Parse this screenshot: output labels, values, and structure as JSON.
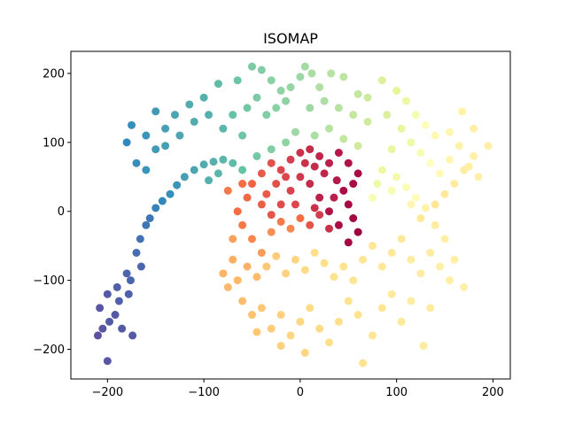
{
  "chart_data": {
    "type": "scatter",
    "title": "ISOMAP",
    "xlabel": "",
    "ylabel": "",
    "xlim": [
      -238,
      218
    ],
    "ylim": [
      -243,
      232
    ],
    "xticks": [
      -200,
      -100,
      0,
      100,
      200
    ],
    "xtick_labels": [
      "−200",
      "−100",
      "0",
      "100",
      "200"
    ],
    "yticks": [
      -200,
      -100,
      0,
      100,
      200
    ],
    "ytick_labels": [
      "−200",
      "−100",
      "0",
      "100",
      "200"
    ],
    "grid": false,
    "legend": "none",
    "colormap": "Spectral",
    "colormap_stops": [
      "#9e0142",
      "#d53e4f",
      "#f46d43",
      "#fdae61",
      "#fee08b",
      "#ffffbf",
      "#e6f598",
      "#abdda4",
      "#66c2a5",
      "#3288bd",
      "#5e4fa2"
    ],
    "points": [
      {
        "x": -210,
        "y": -180,
        "c": 1.0
      },
      {
        "x": -205,
        "y": -170,
        "c": 0.99
      },
      {
        "x": -200,
        "y": -217,
        "c": 0.99
      },
      {
        "x": -198,
        "y": -160,
        "c": 0.98
      },
      {
        "x": -192,
        "y": -150,
        "c": 0.98
      },
      {
        "x": -188,
        "y": -130,
        "c": 0.97
      },
      {
        "x": -190,
        "y": -110,
        "c": 0.97
      },
      {
        "x": -180,
        "y": -90,
        "c": 0.96
      },
      {
        "x": -176,
        "y": -100,
        "c": 0.96
      },
      {
        "x": -170,
        "y": -60,
        "c": 0.95
      },
      {
        "x": -166,
        "y": -40,
        "c": 0.94
      },
      {
        "x": -160,
        "y": -20,
        "c": 0.93
      },
      {
        "x": -174,
        "y": -180,
        "c": 0.98
      },
      {
        "x": -185,
        "y": -170,
        "c": 0.98
      },
      {
        "x": -200,
        "y": -120,
        "c": 0.98
      },
      {
        "x": -208,
        "y": -140,
        "c": 0.99
      },
      {
        "x": -178,
        "y": -120,
        "c": 0.97
      },
      {
        "x": -165,
        "y": -80,
        "c": 0.96
      },
      {
        "x": -156,
        "y": -10,
        "c": 0.93
      },
      {
        "x": -150,
        "y": 5,
        "c": 0.91
      },
      {
        "x": -143,
        "y": 15,
        "c": 0.9
      },
      {
        "x": -135,
        "y": 25,
        "c": 0.89
      },
      {
        "x": -128,
        "y": 38,
        "c": 0.88
      },
      {
        "x": -120,
        "y": 50,
        "c": 0.86
      },
      {
        "x": -110,
        "y": 60,
        "c": 0.85
      },
      {
        "x": -100,
        "y": 68,
        "c": 0.84
      },
      {
        "x": -90,
        "y": 72,
        "c": 0.83
      },
      {
        "x": -80,
        "y": 75,
        "c": 0.82
      },
      {
        "x": -70,
        "y": 70,
        "c": 0.81
      },
      {
        "x": -160,
        "y": 60,
        "c": 0.88
      },
      {
        "x": -170,
        "y": 70,
        "c": 0.89
      },
      {
        "x": -180,
        "y": 100,
        "c": 0.9
      },
      {
        "x": -175,
        "y": 125,
        "c": 0.89
      },
      {
        "x": -160,
        "y": 110,
        "c": 0.88
      },
      {
        "x": -150,
        "y": 90,
        "c": 0.87
      },
      {
        "x": -140,
        "y": 120,
        "c": 0.86
      },
      {
        "x": -130,
        "y": 140,
        "c": 0.85
      },
      {
        "x": -115,
        "y": 155,
        "c": 0.84
      },
      {
        "x": -100,
        "y": 165,
        "c": 0.83
      },
      {
        "x": -85,
        "y": 185,
        "c": 0.81
      },
      {
        "x": -65,
        "y": 190,
        "c": 0.79
      },
      {
        "x": -50,
        "y": 210,
        "c": 0.77
      },
      {
        "x": -40,
        "y": 205,
        "c": 0.76
      },
      {
        "x": -30,
        "y": 190,
        "c": 0.75
      },
      {
        "x": -20,
        "y": 175,
        "c": 0.74
      },
      {
        "x": -10,
        "y": 180,
        "c": 0.73
      },
      {
        "x": 0,
        "y": 195,
        "c": 0.72
      },
      {
        "x": 5,
        "y": 210,
        "c": 0.71
      },
      {
        "x": 12,
        "y": 200,
        "c": 0.7
      },
      {
        "x": 20,
        "y": 180,
        "c": 0.69
      },
      {
        "x": 32,
        "y": 200,
        "c": 0.68
      },
      {
        "x": 45,
        "y": 195,
        "c": 0.67
      },
      {
        "x": 60,
        "y": 170,
        "c": 0.66
      },
      {
        "x": 70,
        "y": 165,
        "c": 0.64
      },
      {
        "x": 85,
        "y": 190,
        "c": 0.62
      },
      {
        "x": 100,
        "y": 175,
        "c": 0.6
      },
      {
        "x": 110,
        "y": 160,
        "c": 0.57
      },
      {
        "x": 120,
        "y": 140,
        "c": 0.54
      },
      {
        "x": 130,
        "y": 125,
        "c": 0.51
      },
      {
        "x": 140,
        "y": 110,
        "c": 0.48
      },
      {
        "x": 155,
        "y": 115,
        "c": 0.47
      },
      {
        "x": 168,
        "y": 145,
        "c": 0.46
      },
      {
        "x": 180,
        "y": 120,
        "c": 0.45
      },
      {
        "x": 195,
        "y": 95,
        "c": 0.45
      },
      {
        "x": 180,
        "y": 80,
        "c": 0.45
      },
      {
        "x": 170,
        "y": 60,
        "c": 0.44
      },
      {
        "x": 160,
        "y": 40,
        "c": 0.44
      },
      {
        "x": 150,
        "y": 25,
        "c": 0.43
      },
      {
        "x": 140,
        "y": 10,
        "c": 0.42
      },
      {
        "x": -150,
        "y": 145,
        "c": 0.87
      },
      {
        "x": -140,
        "y": 95,
        "c": 0.86
      },
      {
        "x": -125,
        "y": 110,
        "c": 0.85
      },
      {
        "x": -110,
        "y": 130,
        "c": 0.84
      },
      {
        "x": -95,
        "y": 140,
        "c": 0.83
      },
      {
        "x": -80,
        "y": 120,
        "c": 0.82
      },
      {
        "x": -70,
        "y": 140,
        "c": 0.8
      },
      {
        "x": -60,
        "y": 110,
        "c": 0.79
      },
      {
        "x": -55,
        "y": 150,
        "c": 0.78
      },
      {
        "x": -45,
        "y": 165,
        "c": 0.77
      },
      {
        "x": -35,
        "y": 140,
        "c": 0.76
      },
      {
        "x": -25,
        "y": 150,
        "c": 0.75
      },
      {
        "x": -15,
        "y": 160,
        "c": 0.74
      },
      {
        "x": 10,
        "y": 150,
        "c": 0.72
      },
      {
        "x": 25,
        "y": 160,
        "c": 0.7
      },
      {
        "x": 40,
        "y": 150,
        "c": 0.68
      },
      {
        "x": 55,
        "y": 140,
        "c": 0.66
      },
      {
        "x": 70,
        "y": 130,
        "c": 0.64
      },
      {
        "x": 90,
        "y": 140,
        "c": 0.62
      },
      {
        "x": 105,
        "y": 120,
        "c": 0.59
      },
      {
        "x": 115,
        "y": 100,
        "c": 0.56
      },
      {
        "x": 125,
        "y": 85,
        "c": 0.53
      },
      {
        "x": 135,
        "y": 70,
        "c": 0.5
      },
      {
        "x": 145,
        "y": 55,
        "c": 0.48
      },
      {
        "x": 155,
        "y": 75,
        "c": 0.47
      },
      {
        "x": 165,
        "y": 95,
        "c": 0.46
      },
      {
        "x": 175,
        "y": 65,
        "c": 0.45
      },
      {
        "x": 185,
        "y": 50,
        "c": 0.45
      },
      {
        "x": 95,
        "y": 90,
        "c": 0.58
      },
      {
        "x": 85,
        "y": 60,
        "c": 0.57
      },
      {
        "x": 100,
        "y": 50,
        "c": 0.55
      },
      {
        "x": 110,
        "y": 35,
        "c": 0.52
      },
      {
        "x": 120,
        "y": 20,
        "c": 0.49
      },
      {
        "x": 130,
        "y": 5,
        "c": 0.46
      },
      {
        "x": 125,
        "y": -10,
        "c": 0.43
      },
      {
        "x": 115,
        "y": 10,
        "c": 0.47
      },
      {
        "x": 95,
        "y": 30,
        "c": 0.53
      },
      {
        "x": 80,
        "y": 40,
        "c": 0.56
      },
      {
        "x": 75,
        "y": 20,
        "c": 0.53
      },
      {
        "x": -60,
        "y": 60,
        "c": 0.8
      },
      {
        "x": -45,
        "y": 80,
        "c": 0.78
      },
      {
        "x": -30,
        "y": 90,
        "c": 0.76
      },
      {
        "x": -15,
        "y": 100,
        "c": 0.74
      },
      {
        "x": -5,
        "y": 115,
        "c": 0.72
      },
      {
        "x": 15,
        "y": 110,
        "c": 0.7
      },
      {
        "x": 30,
        "y": 120,
        "c": 0.68
      },
      {
        "x": 45,
        "y": 105,
        "c": 0.66
      },
      {
        "x": 60,
        "y": 95,
        "c": 0.64
      },
      {
        "x": -50,
        "y": 40,
        "c": 0.18
      },
      {
        "x": -40,
        "y": 55,
        "c": 0.16
      },
      {
        "x": -30,
        "y": 70,
        "c": 0.14
      },
      {
        "x": -20,
        "y": 60,
        "c": 0.12
      },
      {
        "x": -10,
        "y": 75,
        "c": 0.1
      },
      {
        "x": 0,
        "y": 85,
        "c": 0.08
      },
      {
        "x": 10,
        "y": 90,
        "c": 0.07
      },
      {
        "x": 20,
        "y": 80,
        "c": 0.06
      },
      {
        "x": 30,
        "y": 70,
        "c": 0.05
      },
      {
        "x": 40,
        "y": 85,
        "c": 0.04
      },
      {
        "x": 50,
        "y": 70,
        "c": 0.03
      },
      {
        "x": 60,
        "y": 55,
        "c": 0.02
      },
      {
        "x": 55,
        "y": 40,
        "c": 0.02
      },
      {
        "x": 45,
        "y": 30,
        "c": 0.02
      },
      {
        "x": 50,
        "y": 10,
        "c": 0.01
      },
      {
        "x": 55,
        "y": -10,
        "c": 0.01
      },
      {
        "x": 60,
        "y": -30,
        "c": 0.0
      },
      {
        "x": 50,
        "y": -45,
        "c": 0.01
      },
      {
        "x": 40,
        "y": -20,
        "c": 0.02
      },
      {
        "x": 30,
        "y": 0,
        "c": 0.03
      },
      {
        "x": 20,
        "y": 20,
        "c": 0.05
      },
      {
        "x": 10,
        "y": 40,
        "c": 0.07
      },
      {
        "x": 0,
        "y": 50,
        "c": 0.09
      },
      {
        "x": -10,
        "y": 30,
        "c": 0.11
      },
      {
        "x": -20,
        "y": 10,
        "c": 0.13
      },
      {
        "x": -30,
        "y": -5,
        "c": 0.15
      },
      {
        "x": -40,
        "y": 10,
        "c": 0.17
      },
      {
        "x": -55,
        "y": 20,
        "c": 0.19
      },
      {
        "x": -65,
        "y": 0,
        "c": 0.2
      },
      {
        "x": -60,
        "y": -20,
        "c": 0.22
      },
      {
        "x": -50,
        "y": -40,
        "c": 0.24
      },
      {
        "x": -40,
        "y": -60,
        "c": 0.27
      },
      {
        "x": -30,
        "y": -30,
        "c": 0.25
      },
      {
        "x": -20,
        "y": -15,
        "c": 0.22
      },
      {
        "x": -10,
        "y": -25,
        "c": 0.24
      },
      {
        "x": 0,
        "y": -10,
        "c": 0.2
      },
      {
        "x": 10,
        "y": -20,
        "c": 0.15
      },
      {
        "x": 20,
        "y": -5,
        "c": 0.1
      },
      {
        "x": 30,
        "y": -25,
        "c": 0.08
      },
      {
        "x": 38,
        "y": 45,
        "c": 0.04
      },
      {
        "x": 25,
        "y": 55,
        "c": 0.06
      },
      {
        "x": 15,
        "y": 65,
        "c": 0.07
      },
      {
        "x": -70,
        "y": -70,
        "c": 0.3
      },
      {
        "x": -80,
        "y": -90,
        "c": 0.31
      },
      {
        "x": -75,
        "y": -110,
        "c": 0.32
      },
      {
        "x": -65,
        "y": -100,
        "c": 0.32
      },
      {
        "x": -55,
        "y": -80,
        "c": 0.31
      },
      {
        "x": -45,
        "y": -95,
        "c": 0.33
      },
      {
        "x": -35,
        "y": -80,
        "c": 0.35
      },
      {
        "x": -25,
        "y": -65,
        "c": 0.36
      },
      {
        "x": -15,
        "y": -90,
        "c": 0.37
      },
      {
        "x": -5,
        "y": -70,
        "c": 0.38
      },
      {
        "x": 5,
        "y": -85,
        "c": 0.39
      },
      {
        "x": 15,
        "y": -60,
        "c": 0.4
      },
      {
        "x": 25,
        "y": -75,
        "c": 0.4
      },
      {
        "x": 35,
        "y": -95,
        "c": 0.41
      },
      {
        "x": 45,
        "y": -80,
        "c": 0.41
      },
      {
        "x": 55,
        "y": -100,
        "c": 0.42
      },
      {
        "x": 65,
        "y": -70,
        "c": 0.42
      },
      {
        "x": 75,
        "y": -50,
        "c": 0.42
      },
      {
        "x": 85,
        "y": -80,
        "c": 0.43
      },
      {
        "x": 95,
        "y": -60,
        "c": 0.43
      },
      {
        "x": 105,
        "y": -40,
        "c": 0.43
      },
      {
        "x": 115,
        "y": -70,
        "c": 0.44
      },
      {
        "x": 125,
        "y": -90,
        "c": 0.44
      },
      {
        "x": 135,
        "y": -60,
        "c": 0.44
      },
      {
        "x": 145,
        "y": -80,
        "c": 0.45
      },
      {
        "x": 155,
        "y": -100,
        "c": 0.45
      },
      {
        "x": 160,
        "y": -70,
        "c": 0.45
      },
      {
        "x": 170,
        "y": -110,
        "c": 0.45
      },
      {
        "x": 150,
        "y": -40,
        "c": 0.45
      },
      {
        "x": 140,
        "y": -20,
        "c": 0.44
      },
      {
        "x": -60,
        "y": -130,
        "c": 0.33
      },
      {
        "x": -50,
        "y": -150,
        "c": 0.34
      },
      {
        "x": -40,
        "y": -140,
        "c": 0.35
      },
      {
        "x": -30,
        "y": -170,
        "c": 0.36
      },
      {
        "x": -20,
        "y": -150,
        "c": 0.37
      },
      {
        "x": -10,
        "y": -180,
        "c": 0.38
      },
      {
        "x": 0,
        "y": -160,
        "c": 0.38
      },
      {
        "x": 10,
        "y": -140,
        "c": 0.39
      },
      {
        "x": 20,
        "y": -170,
        "c": 0.39
      },
      {
        "x": 30,
        "y": -190,
        "c": 0.4
      },
      {
        "x": 40,
        "y": -160,
        "c": 0.4
      },
      {
        "x": 50,
        "y": -130,
        "c": 0.41
      },
      {
        "x": 60,
        "y": -150,
        "c": 0.41
      },
      {
        "x": 65,
        "y": -220,
        "c": 0.41
      },
      {
        "x": 75,
        "y": -180,
        "c": 0.42
      },
      {
        "x": 85,
        "y": -140,
        "c": 0.42
      },
      {
        "x": 95,
        "y": -120,
        "c": 0.43
      },
      {
        "x": 105,
        "y": -160,
        "c": 0.43
      },
      {
        "x": 115,
        "y": -130,
        "c": 0.44
      },
      {
        "x": 128,
        "y": -195,
        "c": 0.44
      },
      {
        "x": 135,
        "y": -140,
        "c": 0.44
      },
      {
        "x": -20,
        "y": -195,
        "c": 0.37
      },
      {
        "x": 5,
        "y": -205,
        "c": 0.38
      },
      {
        "x": -45,
        "y": -175,
        "c": 0.35
      },
      {
        "x": -70,
        "y": -40,
        "c": 0.28
      },
      {
        "x": -60,
        "y": 40,
        "c": 0.2
      },
      {
        "x": -5,
        "y": 10,
        "c": 0.12
      },
      {
        "x": 15,
        "y": 5,
        "c": 0.08
      },
      {
        "x": 35,
        "y": 20,
        "c": 0.05
      },
      {
        "x": -35,
        "y": 25,
        "c": 0.16
      },
      {
        "x": -25,
        "y": 40,
        "c": 0.14
      },
      {
        "x": -15,
        "y": 50,
        "c": 0.12
      },
      {
        "x": 5,
        "y": 70,
        "c": 0.08
      },
      {
        "x": -75,
        "y": 30,
        "c": 0.22
      },
      {
        "x": -85,
        "y": 55,
        "c": 0.82
      },
      {
        "x": -95,
        "y": 45,
        "c": 0.83
      }
    ]
  }
}
